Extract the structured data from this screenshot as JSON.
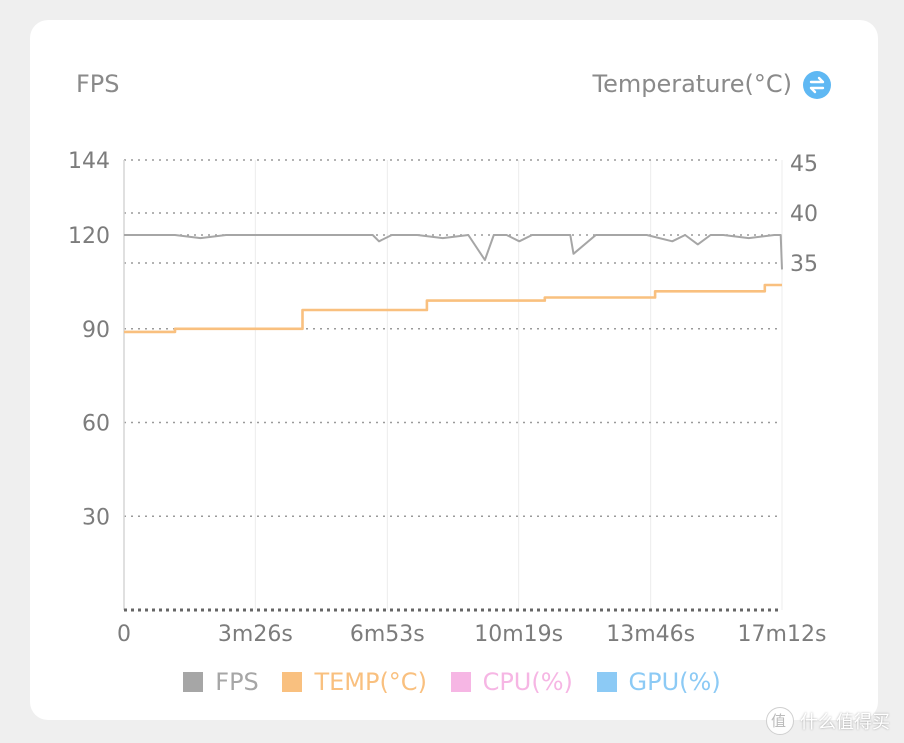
{
  "header": {
    "left_title": "FPS",
    "right_title": "Temperature(°C)",
    "toggle_icon": "swap-arrows-icon"
  },
  "watermark": {
    "text": "什么值得买",
    "icon": "smzdm-logo-icon"
  },
  "colors": {
    "fps": "#a6a6a6",
    "temp": "#f9c07f",
    "cpu": "#f6b6e4",
    "gpu": "#8ccaf5",
    "toggle": "#5fb8f3"
  },
  "chart_data": {
    "type": "line",
    "x_tick_labels": [
      "0",
      "3m26s",
      "6m53s",
      "10m19s",
      "13m46s",
      "17m12s"
    ],
    "x_ticks_seconds": [
      0,
      206,
      413,
      619,
      826,
      1032
    ],
    "xlim": [
      0,
      1032
    ],
    "y_left": {
      "label": "FPS",
      "ticks": [
        30,
        60,
        90,
        120,
        144
      ],
      "ylim": [
        0,
        144
      ]
    },
    "y_right": {
      "label": "Temperature(°C)",
      "ticks": [
        35,
        40,
        45
      ]
    },
    "grid": true,
    "legend": {
      "placement": "bottom",
      "entries": [
        {
          "name": "FPS",
          "color": "#a6a6a6"
        },
        {
          "name": "TEMP(°C)",
          "color": "#f9c07f"
        },
        {
          "name": "CPU(%)",
          "color": "#f6b6e4"
        },
        {
          "name": "GPU(%)",
          "color": "#8ccaf5"
        }
      ]
    },
    "series": [
      {
        "name": "FPS",
        "axis": "left",
        "x": [
          0,
          40,
          80,
          120,
          160,
          200,
          240,
          280,
          320,
          360,
          390,
          400,
          420,
          460,
          500,
          540,
          566,
          580,
          600,
          620,
          640,
          660,
          700,
          705,
          740,
          780,
          820,
          860,
          880,
          900,
          920,
          940,
          980,
          1020,
          1030,
          1032
        ],
        "y": [
          120,
          120,
          120,
          119,
          120,
          120,
          120,
          120,
          120,
          120,
          120,
          118,
          120,
          120,
          119,
          120,
          112,
          120,
          120,
          118,
          120,
          120,
          120,
          114,
          120,
          120,
          120,
          118,
          120,
          117,
          120,
          120,
          119,
          120,
          120,
          109
        ]
      },
      {
        "name": "TEMP(°C)",
        "axis": "left",
        "x": [
          0,
          80,
          80,
          280,
          280,
          475,
          475,
          660,
          660,
          833,
          833,
          1005,
          1005,
          1032
        ],
        "y": [
          89,
          89,
          90,
          90,
          96,
          96,
          99,
          99,
          100,
          100,
          102,
          102,
          104,
          104
        ]
      }
    ]
  }
}
